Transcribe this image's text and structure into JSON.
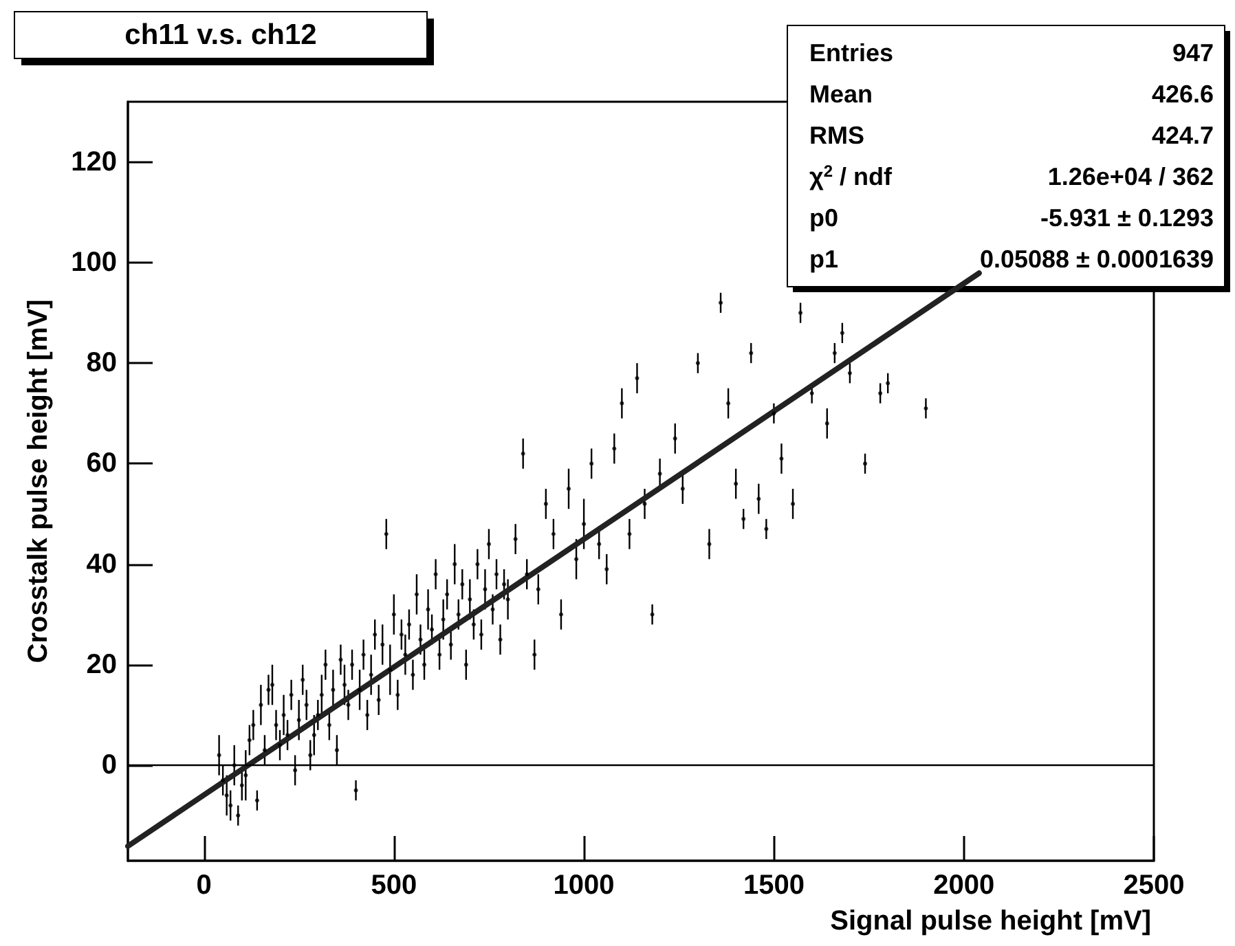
{
  "chart_data": {
    "type": "scatter",
    "title": "ch11 v.s. ch12",
    "xlabel": "Signal pulse height [mV]",
    "ylabel": "Crosstalk pulse height [mV]",
    "annotations": [
      "Entries",
      "947",
      "Mean",
      "426.6",
      "RMS",
      "424.7",
      "χ$^{2}$ / ndf",
      "1.26e+04 / 362",
      "p0",
      "-5.931 ± 0.1293",
      "p1",
      "0.05088 ± 0.0001639"
    ],
    "series": [
      {
        "color": "#000000",
        "marker": "circle",
        "x": [
          40,
          50,
          60,
          70,
          80,
          90,
          100,
          110,
          120,
          130,
          140,
          150,
          160,
          170,
          180,
          190,
          200,
          210,
          220,
          230,
          240,
          250,
          260,
          270,
          280,
          290,
          300,
          310,
          320,
          330,
          340,
          350,
          360,
          370,
          380,
          390,
          400,
          410,
          420,
          430,
          440,
          450,
          460,
          470,
          480,
          490,
          500,
          510,
          520,
          530,
          540,
          550,
          560,
          570,
          580,
          590,
          600,
          610,
          620,
          630,
          640,
          650,
          660,
          670,
          680,
          690,
          700,
          710,
          720,
          730,
          740,
          750,
          760,
          770,
          780,
          790,
          800,
          820,
          840,
          850,
          870,
          880,
          900,
          920,
          940,
          960,
          980,
          1000,
          1020,
          1040,
          1060,
          1080,
          1100,
          1120,
          1140,
          1160,
          1180,
          1200,
          1240,
          1260,
          1300,
          1330,
          1360,
          1380,
          1400,
          1420,
          1440,
          1460,
          1480,
          1500,
          1520,
          1550,
          1570,
          1600,
          1640,
          1660,
          1680,
          1700,
          1740,
          1780,
          1800,
          1900
        ],
        "values": [
          2,
          -3,
          -6,
          -8,
          0,
          -10,
          -4,
          -2,
          5,
          8,
          -7,
          12,
          3,
          15,
          16,
          8,
          4,
          10,
          6,
          14,
          -1,
          9,
          17,
          12,
          2,
          6,
          10,
          14,
          20,
          8,
          15,
          3,
          21,
          16,
          12,
          20,
          -5,
          15,
          22,
          10,
          18,
          26,
          13,
          24,
          46,
          19,
          30,
          14,
          26,
          22,
          28,
          18,
          34,
          25,
          20,
          31,
          27,
          38,
          22,
          29,
          34,
          24,
          40,
          30,
          36,
          20,
          33,
          28,
          40,
          26,
          35,
          44,
          31,
          38,
          25,
          36,
          33,
          45,
          62,
          38,
          22,
          35,
          52,
          46,
          30,
          55,
          41,
          48,
          60,
          44,
          39,
          63,
          72,
          46,
          77,
          52,
          30,
          58,
          65,
          55,
          80,
          44,
          92,
          72,
          56,
          49,
          82,
          53,
          47,
          70,
          61,
          52,
          90,
          74,
          68,
          82,
          86,
          78,
          60,
          74,
          76,
          71
        ],
        "errors": [
          4,
          3,
          4,
          3,
          4,
          2,
          3,
          5,
          3,
          3,
          2,
          4,
          3,
          3,
          4,
          3,
          3,
          4,
          3,
          3,
          3,
          4,
          3,
          3,
          3,
          4,
          3,
          4,
          3,
          3,
          4,
          3,
          3,
          4,
          3,
          3,
          2,
          4,
          3,
          3,
          4,
          3,
          3,
          4,
          3,
          5,
          4,
          3,
          3,
          4,
          3,
          3,
          4,
          3,
          3,
          4,
          3,
          3,
          3,
          4,
          3,
          3,
          4,
          3,
          3,
          3,
          4,
          3,
          3,
          3,
          4,
          3,
          3,
          3,
          3,
          3,
          4,
          3,
          3,
          3,
          3,
          3,
          3,
          3,
          3,
          4,
          4,
          5,
          3,
          3,
          3,
          3,
          3,
          3,
          3,
          3,
          2,
          3,
          3,
          3,
          2,
          3,
          2,
          3,
          3,
          2,
          2,
          3,
          2,
          2,
          3,
          3,
          2,
          2,
          3,
          2,
          2,
          2,
          2,
          2,
          2,
          2
        ]
      },
      {
        "type": "line",
        "marker": "none",
        "color": "#222222",
        "x": [
          -200,
          2040
        ],
        "values": [
          -16.1,
          97.9
        ]
      }
    ],
    "xlim": [
      -200,
      2500
    ],
    "xticks": [
      0,
      500,
      1000,
      1500,
      2000,
      2500
    ],
    "ylim": [
      -19,
      132
    ],
    "yticks": [
      0,
      20,
      40,
      60,
      80,
      100,
      120
    ],
    "ref_lines": [
      {
        "axis": "y",
        "value": 0,
        "color": "#000000"
      }
    ]
  }
}
